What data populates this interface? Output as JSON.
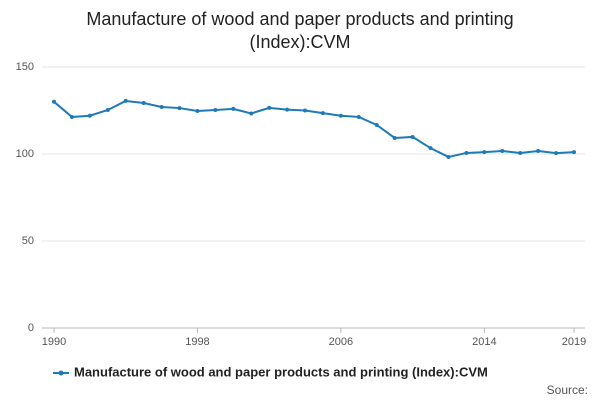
{
  "chart_data": {
    "type": "line",
    "title": "Manufacture of wood and paper products and printing (Index):CVM",
    "x": [
      1990,
      1991,
      1992,
      1993,
      1994,
      1995,
      1996,
      1997,
      1998,
      1999,
      2000,
      2001,
      2002,
      2003,
      2004,
      2005,
      2006,
      2007,
      2008,
      2009,
      2010,
      2011,
      2012,
      2013,
      2014,
      2015,
      2016,
      2017,
      2018,
      2019
    ],
    "series": [
      {
        "name": "Manufacture of wood and paper products and printing (Index):CVM",
        "color": "#1f7ab8",
        "values": [
          130,
          121.3,
          122,
          125.3,
          130.5,
          129.3,
          127,
          126.4,
          124.7,
          125.3,
          125.9,
          123.3,
          126.5,
          125.5,
          125,
          123.5,
          122,
          121.3,
          116.7,
          109.2,
          109.8,
          103.4,
          98.3,
          100.6,
          101.1,
          101.7,
          100.6,
          101.7,
          100.5,
          101.1
        ]
      }
    ],
    "xlim": [
      1990,
      2019
    ],
    "xticks": [
      1990,
      1998,
      2006,
      2014,
      2019
    ],
    "ylim": [
      0,
      150
    ],
    "yticks": [
      0,
      50,
      100,
      150
    ],
    "grid": true,
    "source": "Source:"
  }
}
